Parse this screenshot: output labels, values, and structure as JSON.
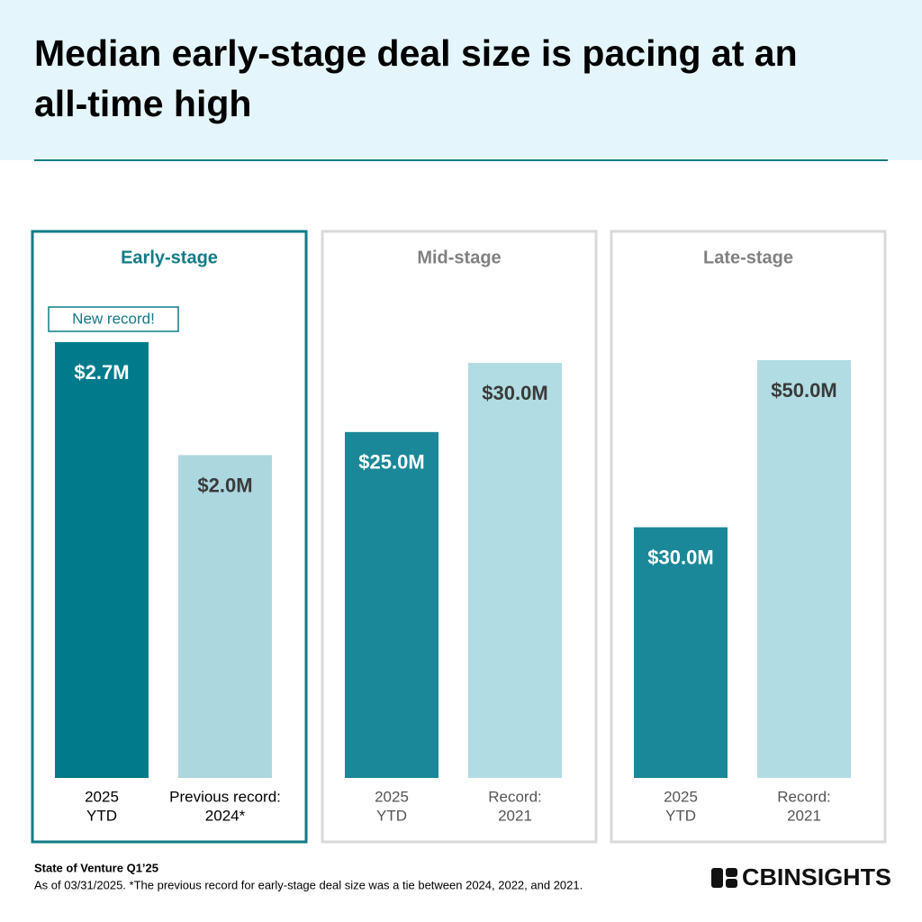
{
  "header": {
    "title_lines": [
      "Median early-stage deal size is pacing at an",
      "all-time high"
    ]
  },
  "chart_data": [
    {
      "type": "bar",
      "title": "Early-stage",
      "highlight": true,
      "annotation": "New record!",
      "categories": [
        [
          "2025",
          "YTD"
        ],
        [
          "Previous record:",
          "2024*"
        ]
      ],
      "values": [
        2.7,
        2.0
      ],
      "value_labels": [
        "$2.7M",
        "$2.0M"
      ],
      "colors": [
        "#017b8b",
        "#acd7df"
      ],
      "ylim": [
        0,
        2.7
      ]
    },
    {
      "type": "bar",
      "title": "Mid-stage",
      "highlight": false,
      "categories": [
        [
          "2025",
          "YTD"
        ],
        [
          "Record:",
          "2021"
        ]
      ],
      "values": [
        25.0,
        30.0
      ],
      "value_labels": [
        "$25.0M",
        "$30.0M"
      ],
      "colors": [
        "#1a8898",
        "#b2dce3"
      ],
      "ylim": [
        0,
        30
      ]
    },
    {
      "type": "bar",
      "title": "Late-stage",
      "highlight": false,
      "categories": [
        [
          "2025",
          "YTD"
        ],
        [
          "Record:",
          "2021"
        ]
      ],
      "values": [
        30.0,
        50.0
      ],
      "value_labels": [
        "$30.0M",
        "$50.0M"
      ],
      "colors": [
        "#1a8898",
        "#b2dce3"
      ],
      "ylim": [
        0,
        50
      ]
    }
  ],
  "footer": {
    "source": "State of Venture Q1’25",
    "note": "As of 03/31/2025. *The previous record for early-stage deal size was a tie between 2024, 2022, and 2021.",
    "logo": "CBINSIGHTS"
  }
}
